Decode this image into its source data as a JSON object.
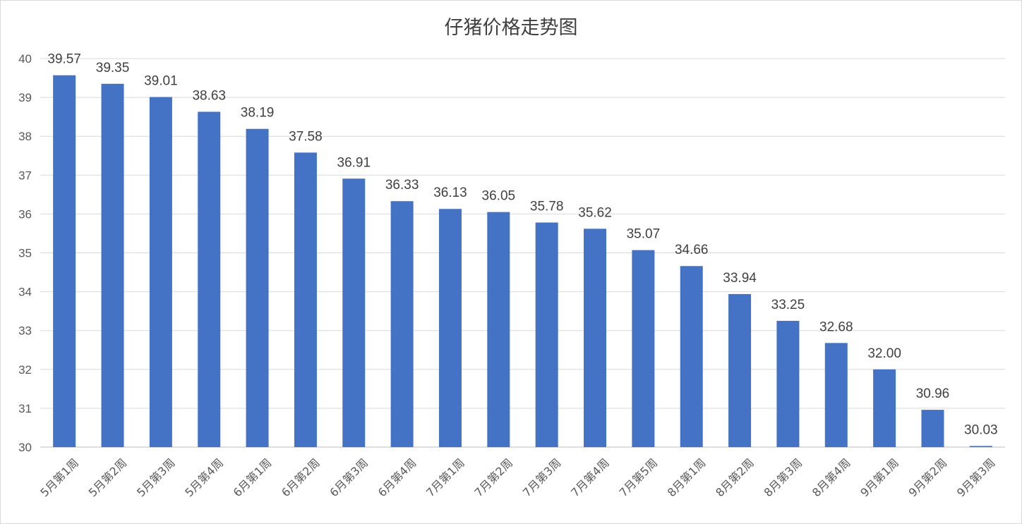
{
  "chart_data": {
    "type": "bar",
    "title": "仔猪价格走势图",
    "xlabel": "",
    "ylabel": "",
    "ylim": [
      30,
      40
    ],
    "yticks": [
      30,
      31,
      32,
      33,
      34,
      35,
      36,
      37,
      38,
      39,
      40
    ],
    "grid": true,
    "legend": "none",
    "bar_color": "#4472C4",
    "categories": [
      "5月第1周",
      "5月第2周",
      "5月第3周",
      "5月第4周",
      "6月第1周",
      "6月第2周",
      "6月第3周",
      "6月第4周",
      "7月第1周",
      "7月第2周",
      "7月第3周",
      "7月第4周",
      "7月第5周",
      "8月第1周",
      "8月第2周",
      "8月第3周",
      "8月第4周",
      "9月第1周",
      "9月第2周",
      "9月第3周"
    ],
    "values": [
      39.57,
      39.35,
      39.01,
      38.63,
      38.19,
      37.58,
      36.91,
      36.33,
      36.13,
      36.05,
      35.78,
      35.62,
      35.07,
      34.66,
      33.94,
      33.25,
      32.68,
      32.0,
      30.96,
      30.03
    ],
    "data_labels": [
      "39.57",
      "39.35",
      "39.01",
      "38.63",
      "38.19",
      "37.58",
      "36.91",
      "36.33",
      "36.13",
      "36.05",
      "35.78",
      "35.62",
      "35.07",
      "34.66",
      "33.94",
      "33.25",
      "32.68",
      "32.00",
      "30.96",
      "30.03"
    ]
  }
}
